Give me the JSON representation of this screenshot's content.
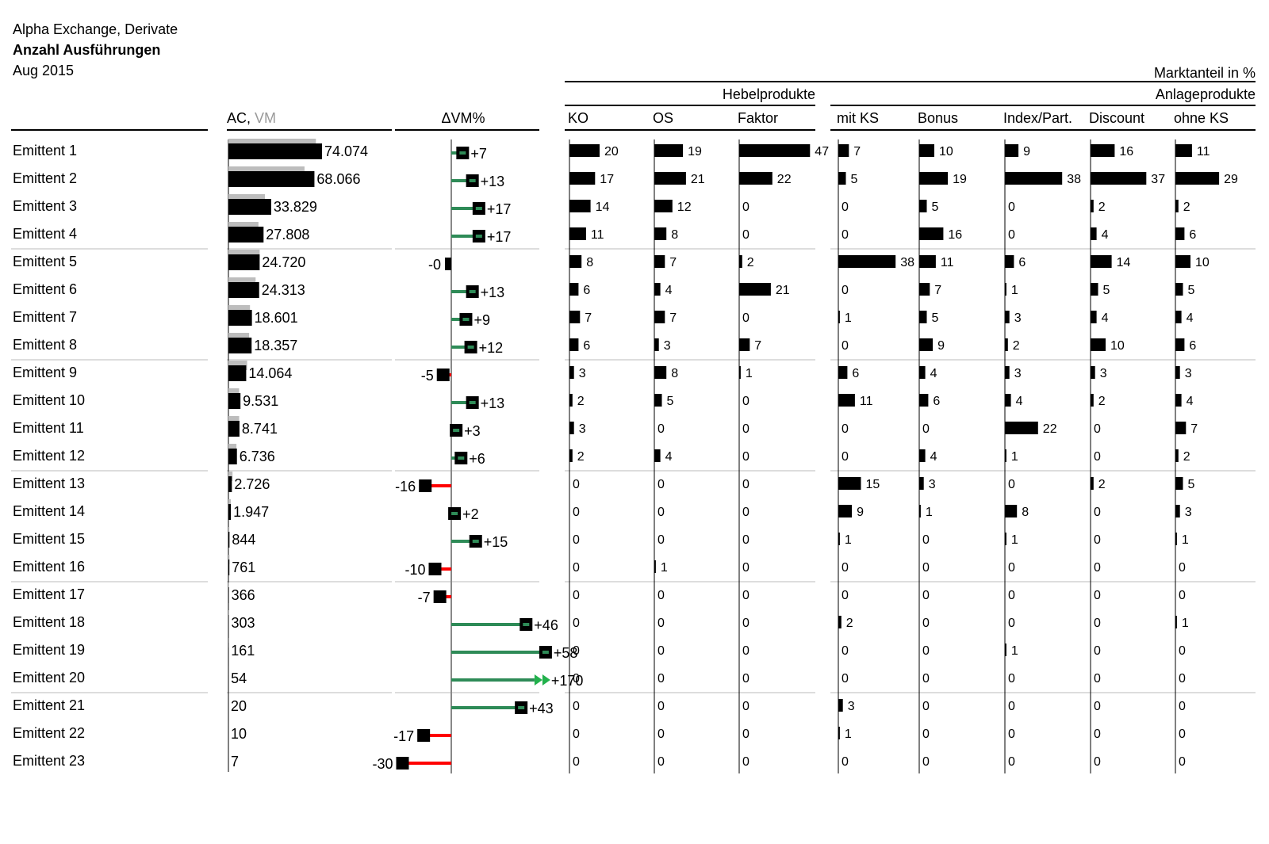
{
  "header": {
    "line1": "Alpha Exchange, Derivate",
    "line2": "Anzahl Ausführungen",
    "line3": "Aug 2015"
  },
  "labels": {
    "ac": "AC, ",
    "vm": "VM",
    "delta": "ΔVM%",
    "marktanteil": "Marktanteil in %",
    "hebel": "Hebelprodukte",
    "anlage": "Anlageprodukte"
  },
  "colors": {
    "ac_bar": "#000000",
    "vm_bar": "#bdbdbd",
    "positive": "#2e8b57",
    "negative": "#ff0000",
    "arrow": "#22b14c",
    "separator": "#bbbbbb"
  },
  "chart_data": {
    "type": "table",
    "rows": [
      "Emittent 1",
      "Emittent 2",
      "Emittent 3",
      "Emittent 4",
      "Emittent 5",
      "Emittent 6",
      "Emittent 7",
      "Emittent 8",
      "Emittent 9",
      "Emittent 10",
      "Emittent 11",
      "Emittent 12",
      "Emittent 13",
      "Emittent 14",
      "Emittent 15",
      "Emittent 16",
      "Emittent 17",
      "Emittent 18",
      "Emittent 19",
      "Emittent 20",
      "Emittent 21",
      "Emittent 22",
      "Emittent 23"
    ],
    "ac_labels": [
      "74.074",
      "68.066",
      "33.829",
      "27.808",
      "24.720",
      "24.313",
      "18.601",
      "18.357",
      "14.064",
      "9.531",
      "8.741",
      "6.736",
      "2.726",
      "1.947",
      "844",
      "761",
      "366",
      "303",
      "161",
      "54",
      "20",
      "10",
      "7"
    ],
    "ac_values": [
      74074,
      68066,
      33829,
      27808,
      24720,
      24313,
      18601,
      18357,
      14064,
      9531,
      8741,
      6736,
      2726,
      1947,
      844,
      761,
      366,
      303,
      161,
      54,
      20,
      10,
      7
    ],
    "delta_vm_pct": [
      7,
      13,
      17,
      17,
      0,
      13,
      9,
      12,
      -5,
      13,
      3,
      6,
      -16,
      2,
      15,
      -10,
      -7,
      46,
      58,
      170,
      43,
      -17,
      -30
    ],
    "delta_labels": [
      "+7",
      "+13",
      "+17",
      "+17",
      "-0",
      "+13",
      "+9",
      "+12",
      "-5",
      "+13",
      "+3",
      "+6",
      "-16",
      "+2",
      "+15",
      "-10",
      "-7",
      "+46",
      "+58",
      "+170",
      "+43",
      "-17",
      "-30"
    ],
    "share_groups": [
      {
        "name": "Hebelprodukte",
        "columns": [
          "KO",
          "OS",
          "Faktor"
        ]
      },
      {
        "name": "Anlageprodukte",
        "columns": [
          "mit KS",
          "Bonus",
          "Index/Part.",
          "Discount",
          "ohne KS"
        ]
      }
    ],
    "share_columns": [
      {
        "name": "KO",
        "values": [
          20,
          17,
          14,
          11,
          8,
          6,
          7,
          6,
          3,
          2,
          3,
          2,
          0,
          0,
          0,
          0,
          0,
          0,
          0,
          0,
          0,
          0,
          0
        ]
      },
      {
        "name": "OS",
        "values": [
          19,
          21,
          12,
          8,
          7,
          4,
          7,
          3,
          8,
          5,
          0,
          4,
          0,
          0,
          0,
          1,
          0,
          0,
          0,
          0,
          0,
          0,
          0
        ]
      },
      {
        "name": "Faktor",
        "values": [
          47,
          22,
          0,
          0,
          2,
          21,
          0,
          7,
          1,
          0,
          0,
          0,
          0,
          0,
          0,
          0,
          0,
          0,
          0,
          0,
          0,
          0,
          0
        ]
      },
      {
        "name": "mit KS",
        "values": [
          7,
          5,
          0,
          0,
          38,
          0,
          1,
          0,
          6,
          11,
          0,
          0,
          15,
          9,
          1,
          0,
          0,
          2,
          0,
          0,
          3,
          1,
          0
        ]
      },
      {
        "name": "Bonus",
        "values": [
          10,
          19,
          5,
          16,
          11,
          7,
          5,
          9,
          4,
          6,
          0,
          4,
          3,
          1,
          0,
          0,
          0,
          0,
          0,
          0,
          0,
          0,
          0
        ]
      },
      {
        "name": "Index/Part.",
        "values": [
          9,
          38,
          0,
          0,
          6,
          1,
          3,
          2,
          3,
          4,
          22,
          1,
          0,
          8,
          1,
          0,
          0,
          0,
          1,
          0,
          0,
          0,
          0
        ]
      },
      {
        "name": "Discount",
        "values": [
          16,
          37,
          2,
          4,
          14,
          5,
          4,
          10,
          3,
          2,
          0,
          0,
          2,
          0,
          0,
          0,
          0,
          0,
          0,
          0,
          0,
          0,
          0
        ]
      },
      {
        "name": "ohne KS",
        "values": [
          11,
          29,
          2,
          6,
          10,
          5,
          4,
          6,
          3,
          4,
          7,
          2,
          5,
          3,
          1,
          0,
          0,
          1,
          0,
          0,
          0,
          0,
          0
        ]
      }
    ]
  }
}
